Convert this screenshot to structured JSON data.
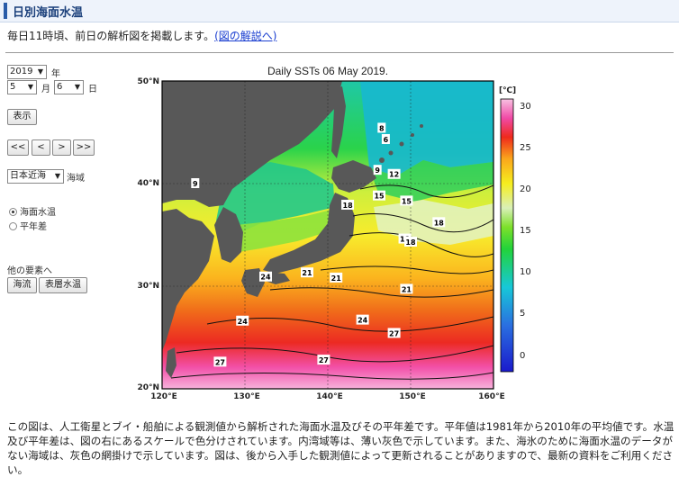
{
  "header": {
    "title": "日別海面水温"
  },
  "intro": {
    "text": "毎日11時頃、前日の解析図を掲載します。",
    "link_label": "(図の解説へ)"
  },
  "controls": {
    "year": {
      "value": "2019",
      "unit": "年"
    },
    "month": {
      "value": "5",
      "unit": "月"
    },
    "day": {
      "value": "6",
      "unit": "日"
    },
    "show_button": "表示",
    "nav": [
      "<<",
      "<",
      ">",
      ">>"
    ],
    "region": {
      "value": "日本近海",
      "unit": "海域"
    },
    "element_options": [
      {
        "label": "海面水温",
        "selected": true
      },
      {
        "label": "平年差",
        "selected": false
      }
    ],
    "other_elements_label": "他の要素へ",
    "other_buttons": [
      "海流",
      "表層水温"
    ]
  },
  "chart_data": {
    "type": "heatmap",
    "title": "Daily SSTs 06 May 2019.",
    "x_ticks": [
      "120°E",
      "130°E",
      "140°E",
      "150°E",
      "160°E"
    ],
    "y_ticks": [
      "50°N",
      "40°N",
      "30°N",
      "20°N"
    ],
    "xlim": [
      120,
      160
    ],
    "ylim": [
      20,
      50
    ],
    "colorbar": {
      "unit": "[℃]",
      "ticks": [
        "30",
        "25",
        "20",
        "15",
        "10",
        "5",
        "0"
      ],
      "range": [
        -2,
        31
      ]
    },
    "contour_labels": [
      {
        "text": "9",
        "lon": 124.0,
        "lat": 40.0
      },
      {
        "text": "8",
        "lon": 146.5,
        "lat": 45.4
      },
      {
        "text": "6",
        "lon": 147.0,
        "lat": 44.3
      },
      {
        "text": "9",
        "lon": 146.0,
        "lat": 41.3
      },
      {
        "text": "12",
        "lon": 148.0,
        "lat": 40.9
      },
      {
        "text": "15",
        "lon": 146.2,
        "lat": 38.8
      },
      {
        "text": "15",
        "lon": 149.5,
        "lat": 38.3
      },
      {
        "text": "18",
        "lon": 142.4,
        "lat": 37.9
      },
      {
        "text": "18",
        "lon": 153.4,
        "lat": 36.2
      },
      {
        "text": "18",
        "lon": 149.3,
        "lat": 34.6
      },
      {
        "text": "18",
        "lon": 150.0,
        "lat": 34.3
      },
      {
        "text": "21",
        "lon": 137.5,
        "lat": 31.3
      },
      {
        "text": "21",
        "lon": 141.0,
        "lat": 30.8
      },
      {
        "text": "21",
        "lon": 149.5,
        "lat": 29.7
      },
      {
        "text": "24",
        "lon": 132.5,
        "lat": 30.9
      },
      {
        "text": "24",
        "lon": 129.7,
        "lat": 26.6
      },
      {
        "text": "24",
        "lon": 144.2,
        "lat": 26.7
      },
      {
        "text": "27",
        "lon": 148.0,
        "lat": 25.4
      },
      {
        "text": "27",
        "lon": 127.0,
        "lat": 22.6
      },
      {
        "text": "27",
        "lon": 139.5,
        "lat": 22.8
      }
    ],
    "colors": {
      "land": "#5a5a5a",
      "scale": [
        "#1a1acc",
        "#2a6fe0",
        "#17c8d8",
        "#22d33a",
        "#b8ec28",
        "#f6ee1e",
        "#fba71c",
        "#ef2a1c",
        "#f04aa6",
        "#f8c2e2"
      ]
    }
  },
  "footer": {
    "description": "この図は、人工衛星とブイ・船舶による観測値から解析された海面水温及びその平年差です。平年値は1981年から2010年の平均値です。水温及び平年差は、図の右にあるスケールで色分けされています。内湾域等は、薄い灰色で示しています。また、海氷のために海面水温のデータがない海域は、灰色の網掛けで示しています。図は、後から入手した観測値によって更新されることがありますので、最新の資料をご利用ください。"
  }
}
